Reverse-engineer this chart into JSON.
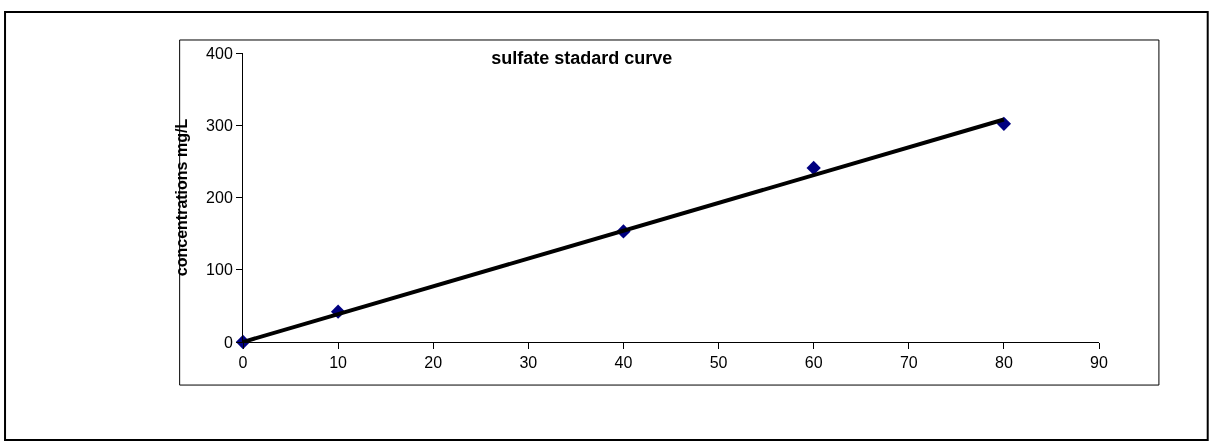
{
  "chart_data": {
    "type": "scatter",
    "title": "sulfate stadard curve",
    "ylabel": "concentrations mg/L",
    "x": [
      0,
      10,
      40,
      60,
      80
    ],
    "series": [
      {
        "color": "#000080",
        "values": [
          0,
          42,
          153,
          241,
          302
        ],
        "marker": "diamond"
      },
      {
        "type": "line",
        "color": "#000000",
        "x": [
          0,
          80
        ],
        "values": [
          0,
          308
        ],
        "marker": "none",
        "line_style": "solid"
      }
    ],
    "xlim": [
      0,
      90
    ],
    "xticks": [
      0,
      10,
      20,
      30,
      40,
      50,
      60,
      70,
      80,
      90
    ],
    "ylim": [
      0,
      400
    ],
    "yticks": [
      0,
      100,
      200,
      300,
      400
    ],
    "legend": false
  }
}
